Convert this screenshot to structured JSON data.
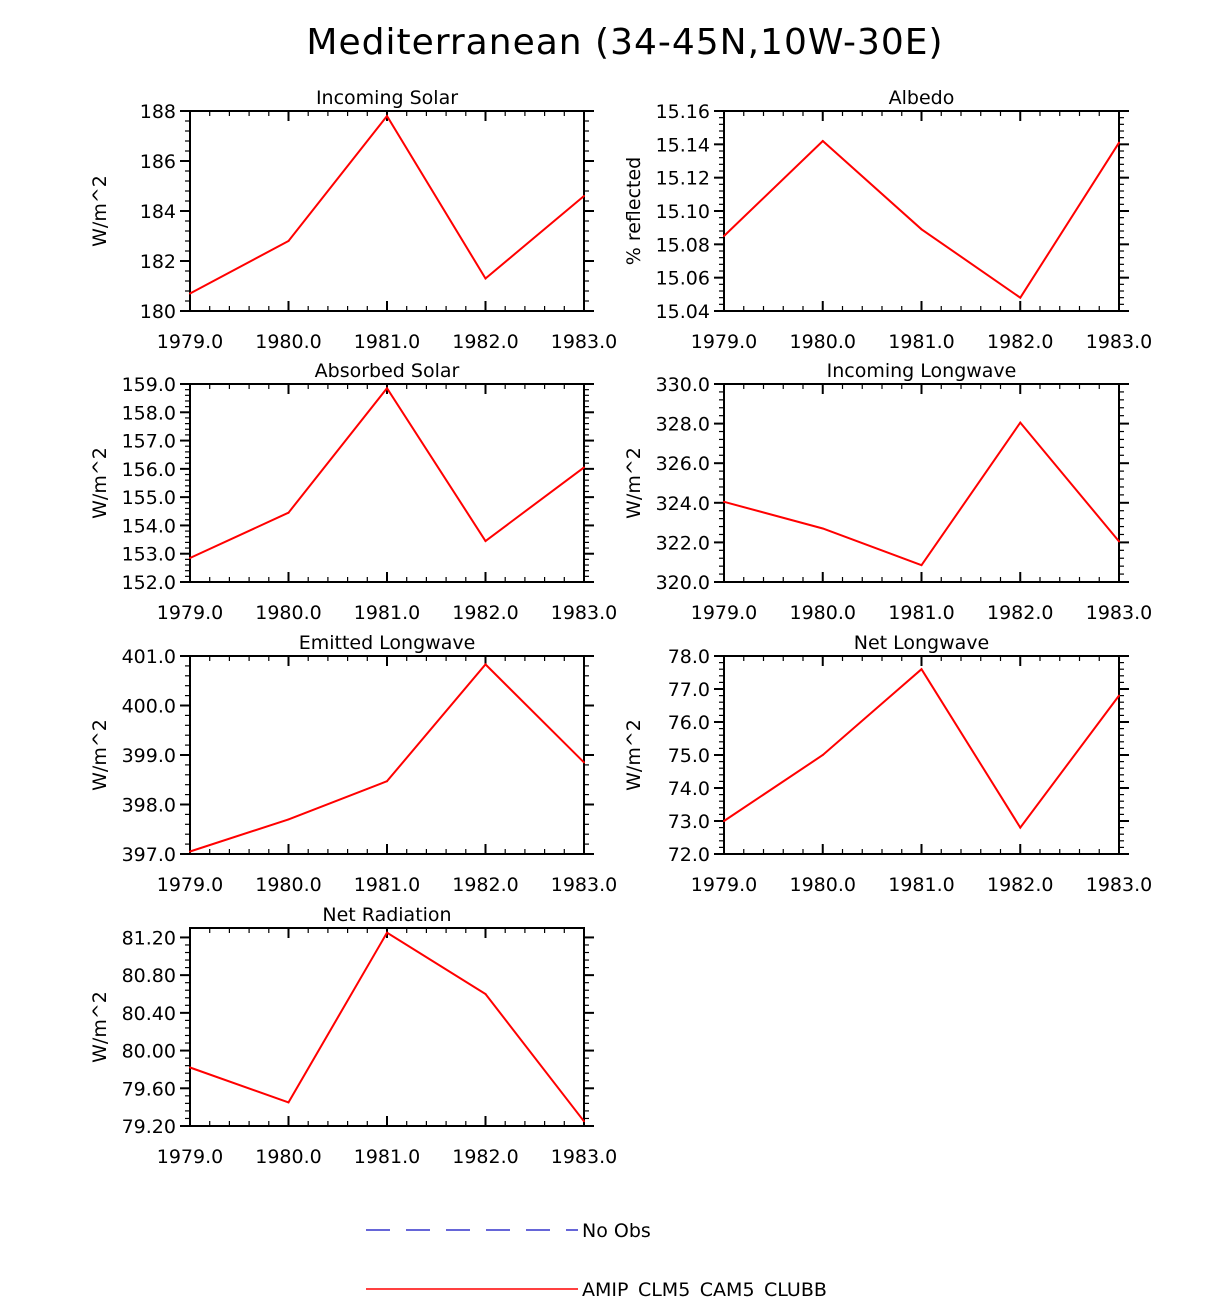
{
  "figure": {
    "title": "Mediterranean (34-45N,10W-30E)"
  },
  "colors": {
    "model_line": "#ff0000",
    "obs_line": "#3333cc",
    "axis": "#000000"
  },
  "legend": {
    "entries": [
      {
        "label": "No Obs",
        "style": "dashed",
        "color": "#3333cc"
      },
      {
        "label": "AMIP_CLM5_CAM5_CLUBB",
        "style": "solid",
        "color": "#ff0000"
      }
    ]
  },
  "chart_data": [
    {
      "type": "line",
      "title": "Incoming Solar",
      "ylabel": "W/m^2",
      "xlabel": "",
      "x": [
        1979,
        1980,
        1981,
        1982,
        1983
      ],
      "xlim": [
        1979,
        1983
      ],
      "xticks": [
        "1979.0",
        "1980.0",
        "1981.0",
        "1982.0",
        "1983.0"
      ],
      "ylim": [
        180,
        188
      ],
      "yticks": [
        180,
        182,
        184,
        186,
        188
      ],
      "ytick_labels": [
        "180",
        "182",
        "184",
        "186",
        "188"
      ],
      "yminor": 4,
      "series": [
        {
          "name": "AMIP_CLM5_CAM5_CLUBB",
          "values": [
            180.7,
            182.8,
            187.8,
            181.3,
            184.6
          ]
        }
      ]
    },
    {
      "type": "line",
      "title": "Albedo",
      "ylabel": "% reflected",
      "xlabel": "",
      "x": [
        1979,
        1980,
        1981,
        1982,
        1983
      ],
      "xlim": [
        1979,
        1983
      ],
      "xticks": [
        "1979.0",
        "1980.0",
        "1981.0",
        "1982.0",
        "1983.0"
      ],
      "ylim": [
        15.04,
        15.16
      ],
      "yticks": [
        15.04,
        15.06,
        15.08,
        15.1,
        15.12,
        15.14,
        15.16
      ],
      "ytick_labels": [
        "15.04",
        "15.06",
        "15.08",
        "15.10",
        "15.12",
        "15.14",
        "15.16"
      ],
      "yminor": 4,
      "series": [
        {
          "name": "AMIP_CLM5_CAM5_CLUBB",
          "values": [
            15.085,
            15.142,
            15.089,
            15.048,
            15.141
          ]
        }
      ]
    },
    {
      "type": "line",
      "title": "Absorbed Solar",
      "ylabel": "W/m^2",
      "xlabel": "",
      "x": [
        1979,
        1980,
        1981,
        1982,
        1983
      ],
      "xlim": [
        1979,
        1983
      ],
      "xticks": [
        "1979.0",
        "1980.0",
        "1981.0",
        "1982.0",
        "1983.0"
      ],
      "ylim": [
        152,
        159
      ],
      "yticks": [
        152,
        153,
        154,
        155,
        156,
        157,
        158,
        159
      ],
      "ytick_labels": [
        "152.0",
        "153.0",
        "154.0",
        "155.0",
        "156.0",
        "157.0",
        "158.0",
        "159.0"
      ],
      "yminor": 4,
      "series": [
        {
          "name": "AMIP_CLM5_CAM5_CLUBB",
          "values": [
            152.85,
            154.45,
            158.85,
            153.45,
            156.05
          ]
        }
      ]
    },
    {
      "type": "line",
      "title": "Incoming Longwave",
      "ylabel": "W/m^2",
      "xlabel": "",
      "x": [
        1979,
        1980,
        1981,
        1982,
        1983
      ],
      "xlim": [
        1979,
        1983
      ],
      "xticks": [
        "1979.0",
        "1980.0",
        "1981.0",
        "1982.0",
        "1983.0"
      ],
      "ylim": [
        320,
        330
      ],
      "yticks": [
        320,
        322,
        324,
        326,
        328,
        330
      ],
      "ytick_labels": [
        "320.0",
        "322.0",
        "324.0",
        "326.0",
        "328.0",
        "330.0"
      ],
      "yminor": 4,
      "series": [
        {
          "name": "AMIP_CLM5_CAM5_CLUBB",
          "values": [
            324.05,
            322.7,
            320.85,
            328.05,
            322.05
          ]
        }
      ]
    },
    {
      "type": "line",
      "title": "Emitted Longwave",
      "ylabel": "W/m^2",
      "xlabel": "",
      "x": [
        1979,
        1980,
        1981,
        1982,
        1983
      ],
      "xlim": [
        1979,
        1983
      ],
      "xticks": [
        "1979.0",
        "1980.0",
        "1981.0",
        "1982.0",
        "1983.0"
      ],
      "ylim": [
        397,
        401
      ],
      "yticks": [
        397,
        398,
        399,
        400,
        401
      ],
      "ytick_labels": [
        "397.0",
        "398.0",
        "399.0",
        "400.0",
        "401.0"
      ],
      "yminor": 4,
      "series": [
        {
          "name": "AMIP_CLM5_CAM5_CLUBB",
          "values": [
            397.05,
            397.7,
            398.47,
            400.83,
            398.85
          ]
        }
      ]
    },
    {
      "type": "line",
      "title": "Net Longwave",
      "ylabel": "W/m^2",
      "xlabel": "",
      "x": [
        1979,
        1980,
        1981,
        1982,
        1983
      ],
      "xlim": [
        1979,
        1983
      ],
      "xticks": [
        "1979.0",
        "1980.0",
        "1981.0",
        "1982.0",
        "1983.0"
      ],
      "ylim": [
        72,
        78
      ],
      "yticks": [
        72,
        73,
        74,
        75,
        76,
        77,
        78
      ],
      "ytick_labels": [
        "72.0",
        "73.0",
        "74.0",
        "75.0",
        "76.0",
        "77.0",
        "78.0"
      ],
      "yminor": 4,
      "series": [
        {
          "name": "AMIP_CLM5_CAM5_CLUBB",
          "values": [
            73.0,
            75.0,
            77.6,
            72.8,
            76.8
          ]
        }
      ]
    },
    {
      "type": "line",
      "title": "Net Radiation",
      "ylabel": "W/m^2",
      "xlabel": "",
      "x": [
        1979,
        1980,
        1981,
        1982,
        1983
      ],
      "xlim": [
        1979,
        1983
      ],
      "xticks": [
        "1979.0",
        "1980.0",
        "1981.0",
        "1982.0",
        "1983.0"
      ],
      "ylim": [
        79.2,
        81.3
      ],
      "yticks": [
        79.2,
        79.6,
        80.0,
        80.4,
        80.8,
        81.2
      ],
      "ytick_labels": [
        "79.20",
        "79.60",
        "80.00",
        "80.40",
        "80.80",
        "81.20"
      ],
      "yminor": 4,
      "series": [
        {
          "name": "AMIP_CLM5_CAM5_CLUBB",
          "values": [
            79.82,
            79.45,
            81.25,
            80.6,
            79.25
          ]
        }
      ]
    }
  ]
}
